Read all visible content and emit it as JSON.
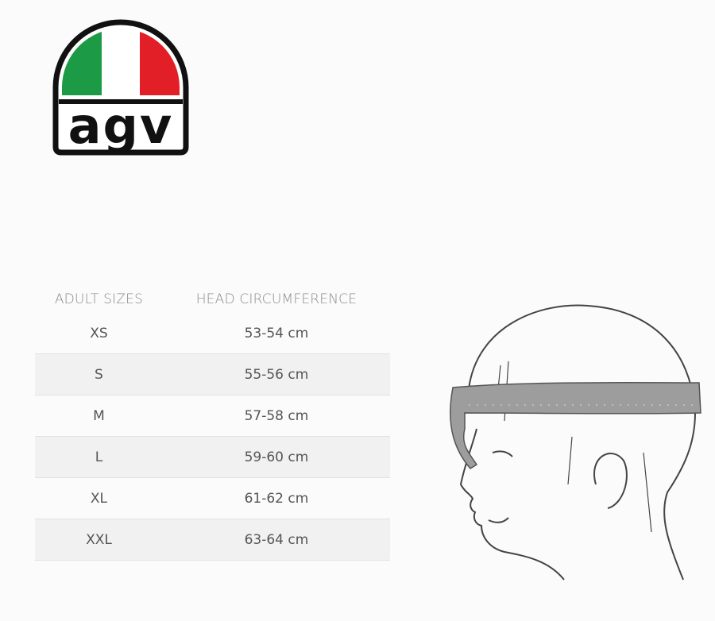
{
  "logo": {
    "text": "agv"
  },
  "table": {
    "header": [
      "ADULT SIZES",
      "HEAD CIRCUMFERENCE"
    ],
    "rows": [
      [
        "XS",
        "53-54 cm"
      ],
      [
        "S",
        "55-56 cm"
      ],
      [
        "M",
        "57-58 cm"
      ],
      [
        "L",
        "59-60 cm"
      ],
      [
        "XL",
        "61-62 cm"
      ],
      [
        "XXL",
        "63-64 cm"
      ]
    ]
  }
}
